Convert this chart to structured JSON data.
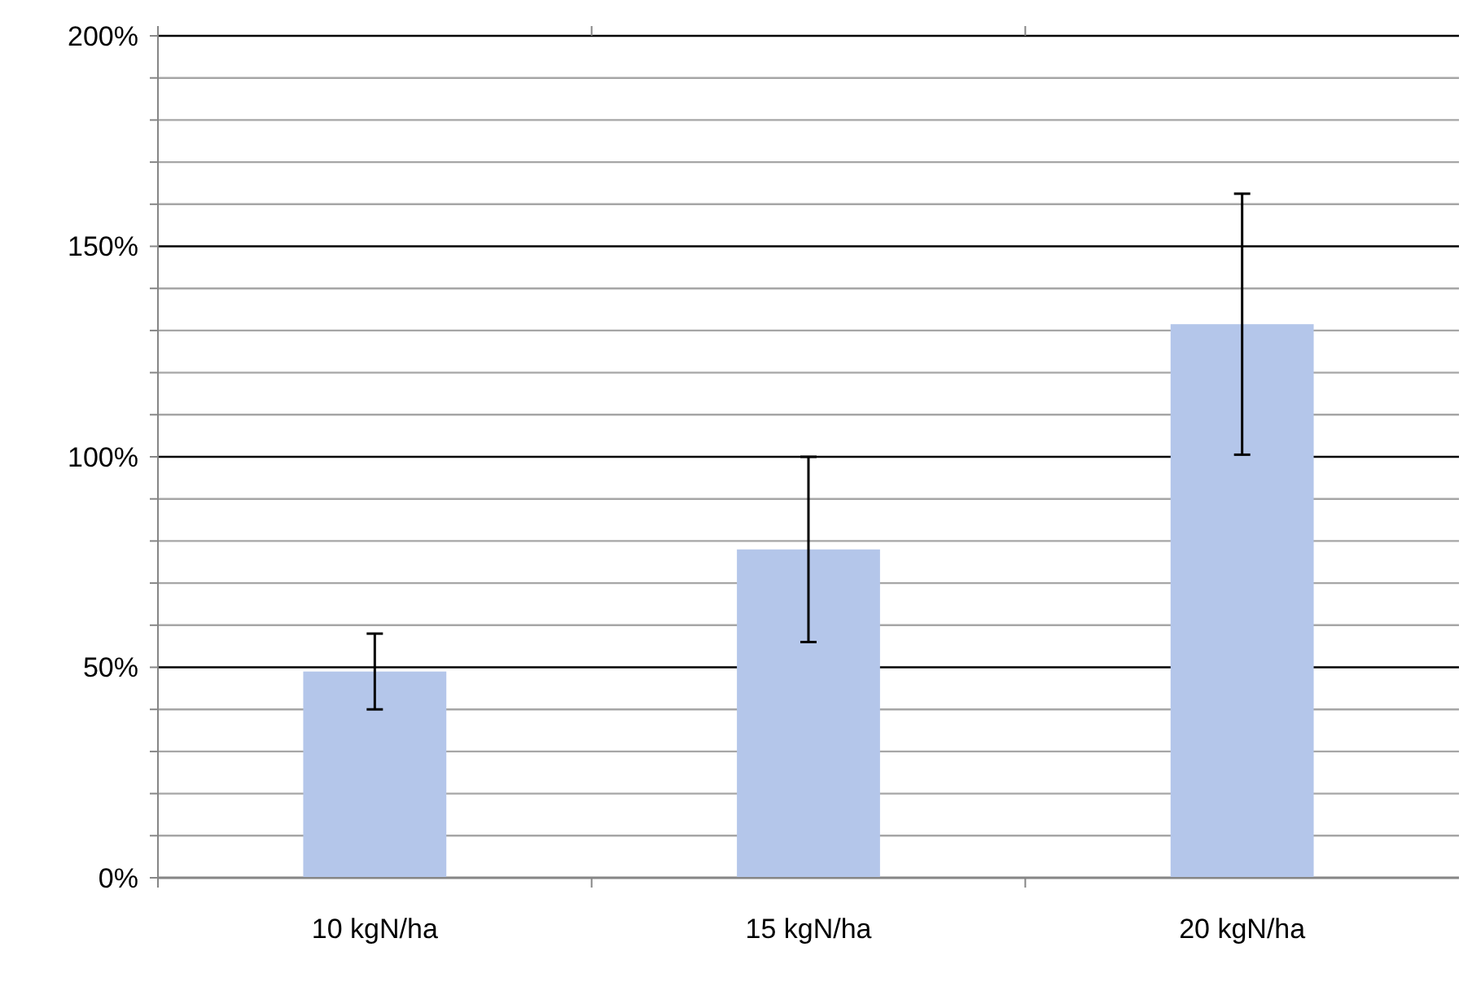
{
  "chart_data": {
    "type": "bar",
    "categories": [
      "10 kgN/ha",
      "15 kgN/ha",
      "20 kgN/ha"
    ],
    "values": [
      49,
      78,
      131.5
    ],
    "errors": [
      9,
      22,
      31
    ],
    "color": "#b4c6ea",
    "ylim": [
      0,
      200
    ],
    "yticks": [
      {
        "value": 0,
        "label": "0%"
      },
      {
        "value": 10,
        "label": null
      },
      {
        "value": 20,
        "label": null
      },
      {
        "value": 30,
        "label": null
      },
      {
        "value": 40,
        "label": null
      },
      {
        "value": 50,
        "label": "50%"
      },
      {
        "value": 60,
        "label": null
      },
      {
        "value": 70,
        "label": null
      },
      {
        "value": 80,
        "label": null
      },
      {
        "value": 90,
        "label": null
      },
      {
        "value": 100,
        "label": "100%"
      },
      {
        "value": 110,
        "label": null
      },
      {
        "value": 120,
        "label": null
      },
      {
        "value": 130,
        "label": null
      },
      {
        "value": 140,
        "label": null
      },
      {
        "value": 150,
        "label": "150%"
      },
      {
        "value": 160,
        "label": null
      },
      {
        "value": 170,
        "label": null
      },
      {
        "value": 180,
        "label": null
      },
      {
        "value": 190,
        "label": null
      },
      {
        "value": 200,
        "label": "200%"
      }
    ],
    "grid": true
  }
}
